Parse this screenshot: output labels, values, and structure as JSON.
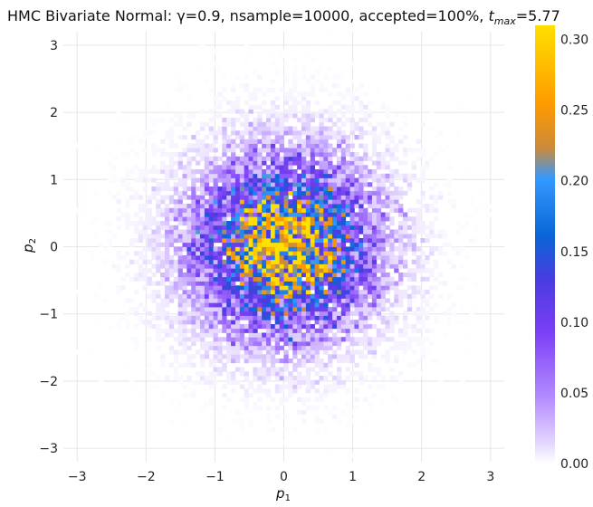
{
  "chart_data": {
    "type": "heatmap",
    "title_parts": [
      "HMC Bivariate Normal: γ=0.9, nsample=10000, accepted=100%, ",
      "t",
      "max",
      "=5.77"
    ],
    "xlabel_parts": [
      "p",
      "1"
    ],
    "ylabel_parts": [
      "p",
      "2"
    ],
    "xlim": [
      -3.2,
      3.2
    ],
    "ylim": [
      -3.2,
      3.2
    ],
    "x_ticks": [
      -3,
      -2,
      -1,
      0,
      1,
      2,
      3
    ],
    "y_ticks": [
      -3,
      -2,
      -1,
      0,
      1,
      2,
      3
    ],
    "x_tick_labels": [
      "−3",
      "−2",
      "−1",
      "0",
      "1",
      "2",
      "3"
    ],
    "y_tick_labels": [
      "−3",
      "−2",
      "−1",
      "0",
      "1",
      "2",
      "3"
    ],
    "grid": true,
    "distribution": {
      "kind": "bivariate-normal-histogram",
      "mean": [
        0,
        0
      ],
      "std": [
        1,
        1
      ],
      "correlation": 0.0,
      "nsample": 10000,
      "bins_per_axis": 100,
      "peak_density": 0.3
    },
    "colorbar": {
      "range": [
        0.0,
        0.31
      ],
      "ticks": [
        0.0,
        0.05,
        0.1,
        0.15,
        0.2,
        0.25,
        0.3
      ],
      "tick_labels": [
        "0.00",
        "0.05",
        "0.10",
        "0.15",
        "0.20",
        "0.25",
        "0.30"
      ],
      "colorscale": [
        [
          0.0,
          "#ffffff"
        ],
        [
          0.05,
          "#e2d4ff"
        ],
        [
          0.15,
          "#b48cff"
        ],
        [
          0.3,
          "#7b3ff5"
        ],
        [
          0.42,
          "#4a3ce0"
        ],
        [
          0.52,
          "#0a66d6"
        ],
        [
          0.65,
          "#3399ff"
        ],
        [
          0.72,
          "#cc8a3a"
        ],
        [
          0.82,
          "#ff9a00"
        ],
        [
          1.0,
          "#ffe000"
        ]
      ]
    }
  }
}
